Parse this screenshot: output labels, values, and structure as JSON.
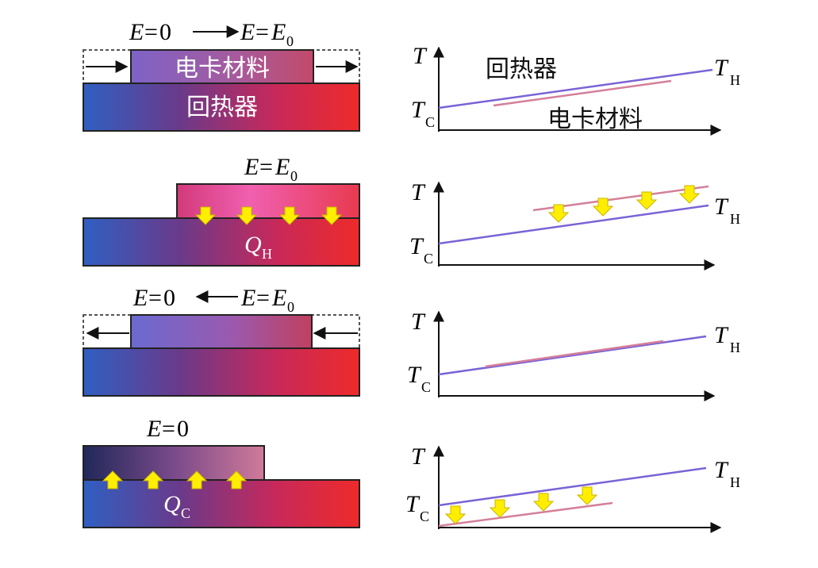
{
  "labels": {
    "regenerator": "回热器",
    "ec_material": "电卡材料",
    "E": "E",
    "eq": "=",
    "zero": "0",
    "E0_main": "E",
    "E0_sub": "0",
    "T": "T",
    "TH_main": "T",
    "TH_sub": "H",
    "TC_main": "T",
    "TC_sub": "C",
    "QH_main": "Q",
    "QH_sub": "H",
    "QC_main": "Q",
    "QC_sub": "C"
  },
  "colors": {
    "cold_blue": "#2e5fc0",
    "hot_red": "#ee2a2a",
    "purple_line": "#7a63d6",
    "pink_line": "#d47f99",
    "arrow_yellow": "#ffee00",
    "arrow_outline": "#c9b400"
  }
}
